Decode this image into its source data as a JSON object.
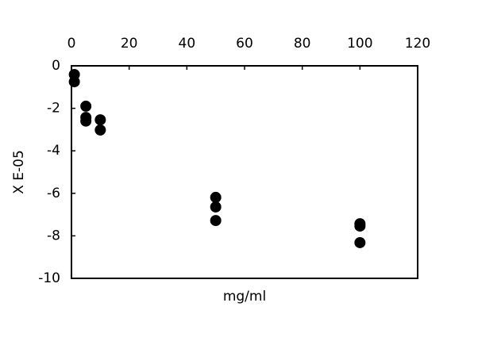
{
  "chart_data": {
    "type": "scatter",
    "x_label": "mg/ml",
    "y_label": "X E-05",
    "x": [
      1,
      1,
      5,
      5,
      5,
      10,
      10,
      50,
      50,
      50,
      100,
      100,
      100
    ],
    "series": [
      {
        "color": "#000000",
        "values": [
          -0.41,
          -0.75,
          -1.9,
          -2.43,
          -2.6,
          -2.54,
          -3.02,
          -6.19,
          -6.64,
          -7.28,
          -7.43,
          -7.54,
          -8.32
        ]
      }
    ],
    "xlim": [
      0,
      120
    ],
    "xticks": [
      0,
      20,
      40,
      60,
      80,
      100,
      120
    ],
    "ylim": [
      -10,
      0
    ],
    "yticks": [
      0,
      -2,
      -4,
      -6,
      -8,
      -10
    ],
    "x_axis_position": "top"
  }
}
